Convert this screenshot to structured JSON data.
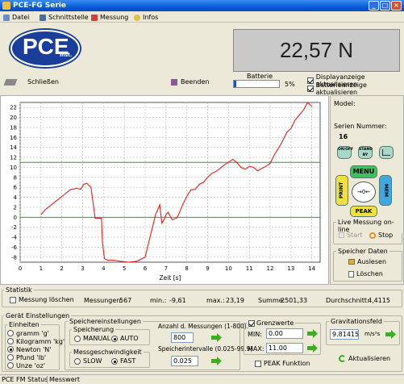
{
  "window": {
    "title": "PCE-FG Serie",
    "min_label": "_",
    "max_label": "□",
    "close_label": "×"
  },
  "menu": {
    "items": [
      {
        "label": "Datei",
        "icon": "file-icon"
      },
      {
        "label": "Schnittstelle",
        "icon": "interface-icon"
      },
      {
        "label": "Messung",
        "icon": "measurement-icon"
      },
      {
        "label": "Infos",
        "icon": "info-icon"
      }
    ]
  },
  "logo": {
    "text": "PCE",
    "sub": "Inst."
  },
  "display": {
    "value": "22,57 N"
  },
  "toolbar": {
    "close_label": "Schließen",
    "end_label": "Beenden"
  },
  "battery": {
    "label": "Batterie",
    "percent_text": "5%",
    "level": 0.05
  },
  "options": {
    "display_update": {
      "label": "Displayanzeige aktualisieren",
      "checked": true
    },
    "battery_update": {
      "label": "Batterieanzeige aktualisieren",
      "checked": true
    }
  },
  "chart_data": {
    "type": "line",
    "xlabel": "Zeit [s]",
    "ylabel": "",
    "xlim": [
      0,
      14.4
    ],
    "ylim": [
      -9,
      23
    ],
    "xticks": [
      0,
      1,
      2,
      3,
      4,
      5,
      6,
      7,
      8,
      9,
      10,
      11,
      12,
      13,
      14
    ],
    "yticks": [
      22,
      20,
      18,
      16,
      14,
      12,
      10,
      8,
      6,
      4,
      2,
      0,
      -2,
      -4,
      -6,
      -8
    ],
    "grid": true,
    "limit_lines": [
      {
        "name": "MAX",
        "value": 11.0,
        "color": "#2aa02a"
      },
      {
        "name": "MIN",
        "value": 0.0,
        "color": "#2aa02a"
      }
    ],
    "series": [
      {
        "color": "#e02020",
        "x": [
          1.0,
          1.2,
          1.5,
          1.8,
          2.1,
          2.4,
          2.7,
          2.9,
          3.05,
          3.2,
          3.4,
          3.6,
          3.7,
          3.8,
          3.9,
          3.95,
          4.05,
          4.2,
          4.5,
          4.8,
          5.2,
          5.6,
          6.0,
          6.2,
          6.5,
          6.7,
          6.8,
          6.9,
          7.0,
          7.1,
          7.3,
          7.5,
          7.6,
          7.8,
          8.0,
          8.2,
          8.4,
          8.6,
          8.8,
          9.0,
          9.2,
          9.4,
          9.6,
          9.8,
          10.0,
          10.2,
          10.4,
          10.6,
          10.8,
          11.0,
          11.2,
          11.4,
          11.6,
          11.8,
          12.0,
          12.2,
          12.5,
          12.8,
          13.0,
          13.2,
          13.4,
          13.6,
          13.8,
          14.0
        ],
        "y": [
          0.5,
          1.5,
          2.5,
          3.5,
          4.5,
          5.5,
          5.8,
          5.6,
          6.6,
          6.8,
          6.0,
          -0.2,
          -0.2,
          -0.2,
          -0.2,
          -5.0,
          -8.3,
          -8.6,
          -8.6,
          -8.8,
          -9.0,
          -8.8,
          -8.0,
          -4.5,
          0.5,
          2.5,
          -1.2,
          -0.5,
          0.5,
          1.0,
          -0.5,
          -0.2,
          0.5,
          2.5,
          4.2,
          5.5,
          5.6,
          6.6,
          7.0,
          8.0,
          8.8,
          9.2,
          9.8,
          10.5,
          11.0,
          11.6,
          11.0,
          10.0,
          9.6,
          10.2,
          10.0,
          9.3,
          9.8,
          10.2,
          10.8,
          12.5,
          14.5,
          17.0,
          17.8,
          19.5,
          20.5,
          21.5,
          23.0,
          22.2
        ]
      }
    ]
  },
  "device": {
    "model_label": "Model:",
    "serial_label": "Serien Nummer:",
    "serial_value": "16",
    "buttons": {
      "onoff": "ON/OFF",
      "standby": "STAND BY",
      "menu": "MENU",
      "print": "PRINT",
      "mem": "MEM",
      "zero": "→0←",
      "peak": "PEAK"
    }
  },
  "live": {
    "title": "Live Messung on-line",
    "start_label": "Start",
    "stop_label": "Stop"
  },
  "stored": {
    "title": "Speicher Daten",
    "read_label": "Auslesen",
    "delete_label": "Löschen"
  },
  "statistik": {
    "title": "Statistik",
    "clear_label": "Messung löschen",
    "count_label": "Messungen:",
    "count_value": "567",
    "min_label": "min.:",
    "min_value": "-9,61",
    "max_label": "max.:",
    "max_value": "23,19",
    "sum_label": "Summe:",
    "sum_value": "2501,33",
    "avg_label": "Durchschnitt:",
    "avg_value": "4,4115"
  },
  "settings": {
    "title": "Gerät Einstellungen",
    "units": {
      "title": "Einheiten",
      "options": [
        {
          "label": "gramm 'g'",
          "selected": false
        },
        {
          "label": "Kilogramm 'kg'",
          "selected": false
        },
        {
          "label": "Newton 'N'",
          "selected": true
        },
        {
          "label": "Pfund 'lb'",
          "selected": false
        },
        {
          "label": "Unze 'oz'",
          "selected": false
        }
      ]
    },
    "storage": {
      "title": "Speichereinstellungen",
      "mode_title": "Speicherung",
      "manual_label": "MANUAL",
      "auto_label": "AUTO",
      "speed_title": "Messgeschwindigkeit",
      "slow_label": "SLOW",
      "fast_label": "FAST",
      "count_label": "Anzahl d. Messungen (1-800):",
      "count_value": "800",
      "interval_label": "Speicherintervalle (0.025-99.9)",
      "interval_value": "0.025"
    },
    "limits": {
      "title": "Grenzwerte",
      "enabled": true,
      "min_label": "MIN:",
      "min_value": "0.00",
      "max_label": "MAX:",
      "max_value": "11.00",
      "peak_label": "PEAK Funktion"
    },
    "gravity": {
      "title": "Gravitationsfeld",
      "value": "9.81415",
      "unit": "m/s²s",
      "update_label": "Aktualisieren"
    }
  },
  "statusbar": {
    "left": "PCE FM Status",
    "right": "Messwert"
  }
}
